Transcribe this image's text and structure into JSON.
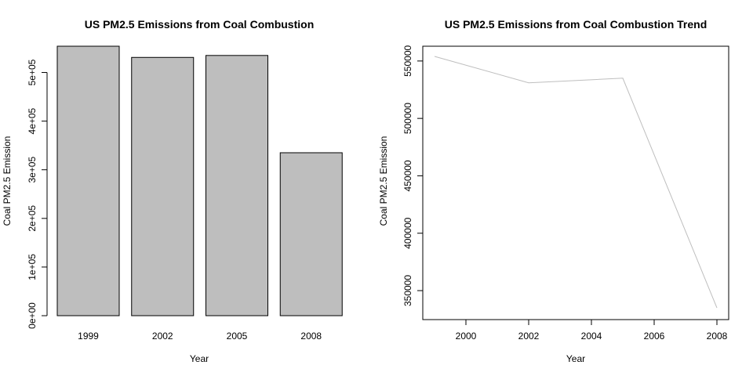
{
  "chart_data": [
    {
      "type": "bar",
      "title": "US PM2.5 Emissions from Coal Combustion",
      "xlabel": "Year",
      "ylabel": "Coal PM2.5 Emission",
      "categories": [
        "1999",
        "2002",
        "2005",
        "2008"
      ],
      "values": [
        554000,
        531000,
        535000,
        335000
      ],
      "ylim": [
        0,
        554000
      ],
      "yticks": [
        0,
        100000,
        200000,
        300000,
        400000,
        500000
      ],
      "ytick_labels": [
        "0e+00",
        "1e+05",
        "2e+05",
        "3e+05",
        "4e+05",
        "5e+05"
      ],
      "bar_color": "#bebebe",
      "grid": false
    },
    {
      "type": "line",
      "title": "US PM2.5 Emissions from Coal Combustion Trend",
      "xlabel": "Year",
      "ylabel": "Coal PM2.5 Emission",
      "x": [
        1999,
        2002,
        2005,
        2008
      ],
      "y": [
        554000,
        531000,
        535000,
        335000
      ],
      "xlim": [
        1999,
        2008
      ],
      "ylim": [
        335000,
        554000
      ],
      "xticks": [
        2000,
        2002,
        2004,
        2006,
        2008
      ],
      "xtick_labels": [
        "2000",
        "2002",
        "2004",
        "2006",
        "2008"
      ],
      "yticks": [
        350000,
        400000,
        450000,
        500000,
        550000
      ],
      "ytick_labels": [
        "350000",
        "400000",
        "450000",
        "500000",
        "550000"
      ],
      "line_color": "#bebebe",
      "grid": false
    }
  ]
}
